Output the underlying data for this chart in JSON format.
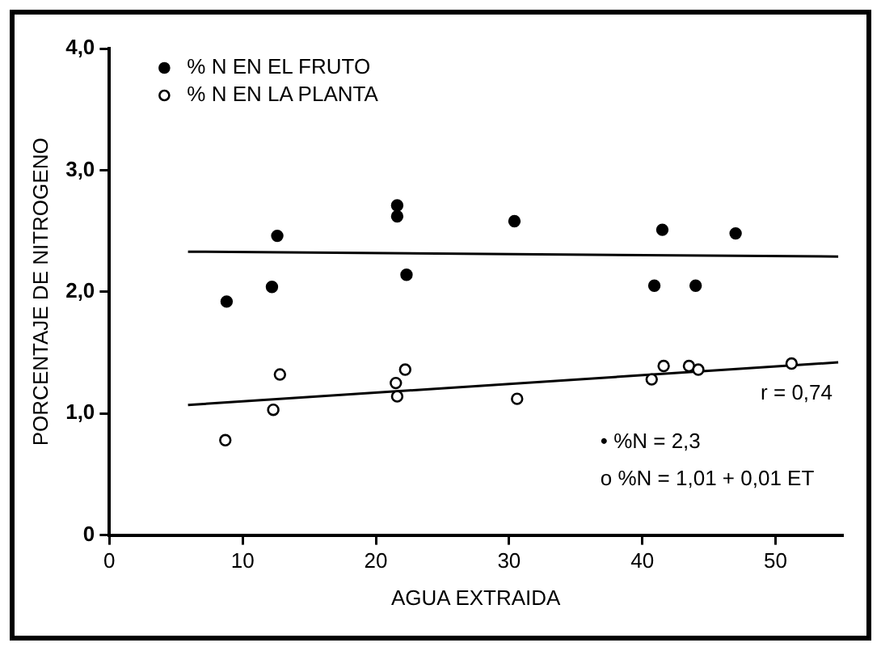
{
  "chart_data": {
    "type": "scatter",
    "xlabel": "AGUA EXTRAIDA",
    "ylabel": "PORCENTAJE DE NITROGENO",
    "xlim": [
      0,
      55
    ],
    "ylim": [
      0,
      4
    ],
    "xticks": [
      0,
      10,
      20,
      30,
      40,
      50
    ],
    "yticks": [
      {
        "value": 0,
        "label": "0"
      },
      {
        "value": 1,
        "label": "1,0"
      },
      {
        "value": 2,
        "label": "2,0"
      },
      {
        "value": 3,
        "label": "3,0"
      },
      {
        "value": 4,
        "label": "4,0"
      }
    ],
    "grid": false,
    "legend": "top left",
    "marker": "circle",
    "series": [
      {
        "name": "% N EN EL FRUTO",
        "color": "#000000",
        "x": [
          8.8,
          12.2,
          12.6,
          21.6,
          21.6,
          22.3,
          30.4,
          41.5,
          40.9,
          44.0,
          47.0
        ],
        "values": [
          1.92,
          2.04,
          2.46,
          2.71,
          2.62,
          2.14,
          2.58,
          2.51,
          2.05,
          2.05,
          2.48
        ]
      },
      {
        "name": "% N EN LA PLANTA",
        "color": "#ffffff",
        "x": [
          8.7,
          12.3,
          12.8,
          21.5,
          21.6,
          22.2,
          30.6,
          40.7,
          41.6,
          43.5,
          44.2,
          51.2
        ],
        "values": [
          0.78,
          1.03,
          1.32,
          1.25,
          1.14,
          1.36,
          1.12,
          1.28,
          1.39,
          1.39,
          1.36,
          1.41
        ]
      },
      {
        "type": "line",
        "color": "#000000",
        "marker": "none",
        "x": [
          5.9,
          54.7
        ],
        "values": [
          2.33,
          2.29
        ]
      },
      {
        "type": "line",
        "color": "#000000",
        "marker": "none",
        "x": [
          5.9,
          54.7
        ],
        "values": [
          1.07,
          1.42
        ]
      }
    ],
    "annotations": [
      "r = 0,74",
      "• %N = 2,3",
      "o %N = 1,01 + 0,01 ET"
    ]
  }
}
